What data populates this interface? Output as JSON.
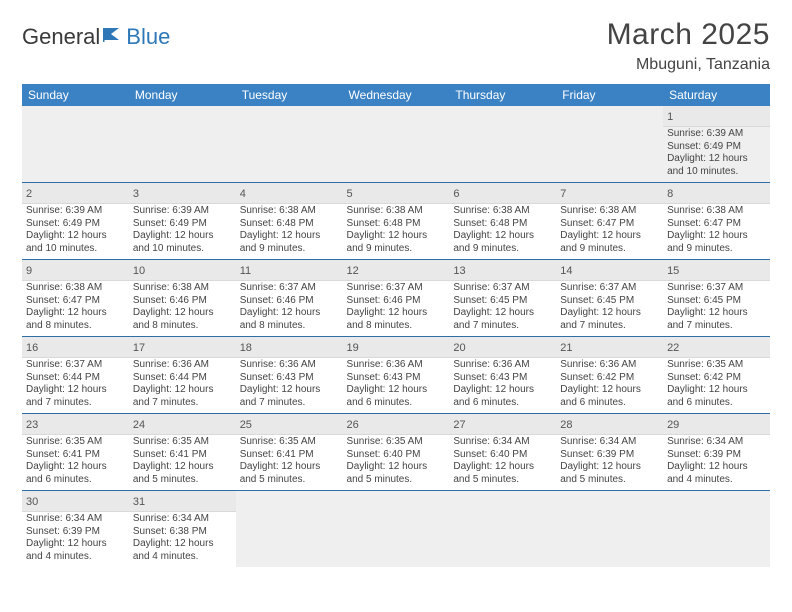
{
  "brand": {
    "part1": "General",
    "part2": "Blue"
  },
  "title": {
    "month": "March 2025",
    "location": "Mbuguni, Tanzania"
  },
  "colors": {
    "header_bg": "#3b82c4",
    "header_text": "#ffffff",
    "row_divider": "#2f6da8",
    "daynum_bg": "#e9e9e9",
    "empty_bg": "#efefef",
    "text": "#444444",
    "brand_blue": "#2f78b8"
  },
  "day_headers": [
    "Sunday",
    "Monday",
    "Tuesday",
    "Wednesday",
    "Thursday",
    "Friday",
    "Saturday"
  ],
  "weeks": [
    [
      null,
      null,
      null,
      null,
      null,
      null,
      {
        "n": "1",
        "sr": "Sunrise: 6:39 AM",
        "ss": "Sunset: 6:49 PM",
        "d1": "Daylight: 12 hours",
        "d2": "and 10 minutes."
      }
    ],
    [
      {
        "n": "2",
        "sr": "Sunrise: 6:39 AM",
        "ss": "Sunset: 6:49 PM",
        "d1": "Daylight: 12 hours",
        "d2": "and 10 minutes."
      },
      {
        "n": "3",
        "sr": "Sunrise: 6:39 AM",
        "ss": "Sunset: 6:49 PM",
        "d1": "Daylight: 12 hours",
        "d2": "and 10 minutes."
      },
      {
        "n": "4",
        "sr": "Sunrise: 6:38 AM",
        "ss": "Sunset: 6:48 PM",
        "d1": "Daylight: 12 hours",
        "d2": "and 9 minutes."
      },
      {
        "n": "5",
        "sr": "Sunrise: 6:38 AM",
        "ss": "Sunset: 6:48 PM",
        "d1": "Daylight: 12 hours",
        "d2": "and 9 minutes."
      },
      {
        "n": "6",
        "sr": "Sunrise: 6:38 AM",
        "ss": "Sunset: 6:48 PM",
        "d1": "Daylight: 12 hours",
        "d2": "and 9 minutes."
      },
      {
        "n": "7",
        "sr": "Sunrise: 6:38 AM",
        "ss": "Sunset: 6:47 PM",
        "d1": "Daylight: 12 hours",
        "d2": "and 9 minutes."
      },
      {
        "n": "8",
        "sr": "Sunrise: 6:38 AM",
        "ss": "Sunset: 6:47 PM",
        "d1": "Daylight: 12 hours",
        "d2": "and 9 minutes."
      }
    ],
    [
      {
        "n": "9",
        "sr": "Sunrise: 6:38 AM",
        "ss": "Sunset: 6:47 PM",
        "d1": "Daylight: 12 hours",
        "d2": "and 8 minutes."
      },
      {
        "n": "10",
        "sr": "Sunrise: 6:38 AM",
        "ss": "Sunset: 6:46 PM",
        "d1": "Daylight: 12 hours",
        "d2": "and 8 minutes."
      },
      {
        "n": "11",
        "sr": "Sunrise: 6:37 AM",
        "ss": "Sunset: 6:46 PM",
        "d1": "Daylight: 12 hours",
        "d2": "and 8 minutes."
      },
      {
        "n": "12",
        "sr": "Sunrise: 6:37 AM",
        "ss": "Sunset: 6:46 PM",
        "d1": "Daylight: 12 hours",
        "d2": "and 8 minutes."
      },
      {
        "n": "13",
        "sr": "Sunrise: 6:37 AM",
        "ss": "Sunset: 6:45 PM",
        "d1": "Daylight: 12 hours",
        "d2": "and 7 minutes."
      },
      {
        "n": "14",
        "sr": "Sunrise: 6:37 AM",
        "ss": "Sunset: 6:45 PM",
        "d1": "Daylight: 12 hours",
        "d2": "and 7 minutes."
      },
      {
        "n": "15",
        "sr": "Sunrise: 6:37 AM",
        "ss": "Sunset: 6:45 PM",
        "d1": "Daylight: 12 hours",
        "d2": "and 7 minutes."
      }
    ],
    [
      {
        "n": "16",
        "sr": "Sunrise: 6:37 AM",
        "ss": "Sunset: 6:44 PM",
        "d1": "Daylight: 12 hours",
        "d2": "and 7 minutes."
      },
      {
        "n": "17",
        "sr": "Sunrise: 6:36 AM",
        "ss": "Sunset: 6:44 PM",
        "d1": "Daylight: 12 hours",
        "d2": "and 7 minutes."
      },
      {
        "n": "18",
        "sr": "Sunrise: 6:36 AM",
        "ss": "Sunset: 6:43 PM",
        "d1": "Daylight: 12 hours",
        "d2": "and 7 minutes."
      },
      {
        "n": "19",
        "sr": "Sunrise: 6:36 AM",
        "ss": "Sunset: 6:43 PM",
        "d1": "Daylight: 12 hours",
        "d2": "and 6 minutes."
      },
      {
        "n": "20",
        "sr": "Sunrise: 6:36 AM",
        "ss": "Sunset: 6:43 PM",
        "d1": "Daylight: 12 hours",
        "d2": "and 6 minutes."
      },
      {
        "n": "21",
        "sr": "Sunrise: 6:36 AM",
        "ss": "Sunset: 6:42 PM",
        "d1": "Daylight: 12 hours",
        "d2": "and 6 minutes."
      },
      {
        "n": "22",
        "sr": "Sunrise: 6:35 AM",
        "ss": "Sunset: 6:42 PM",
        "d1": "Daylight: 12 hours",
        "d2": "and 6 minutes."
      }
    ],
    [
      {
        "n": "23",
        "sr": "Sunrise: 6:35 AM",
        "ss": "Sunset: 6:41 PM",
        "d1": "Daylight: 12 hours",
        "d2": "and 6 minutes."
      },
      {
        "n": "24",
        "sr": "Sunrise: 6:35 AM",
        "ss": "Sunset: 6:41 PM",
        "d1": "Daylight: 12 hours",
        "d2": "and 5 minutes."
      },
      {
        "n": "25",
        "sr": "Sunrise: 6:35 AM",
        "ss": "Sunset: 6:41 PM",
        "d1": "Daylight: 12 hours",
        "d2": "and 5 minutes."
      },
      {
        "n": "26",
        "sr": "Sunrise: 6:35 AM",
        "ss": "Sunset: 6:40 PM",
        "d1": "Daylight: 12 hours",
        "d2": "and 5 minutes."
      },
      {
        "n": "27",
        "sr": "Sunrise: 6:34 AM",
        "ss": "Sunset: 6:40 PM",
        "d1": "Daylight: 12 hours",
        "d2": "and 5 minutes."
      },
      {
        "n": "28",
        "sr": "Sunrise: 6:34 AM",
        "ss": "Sunset: 6:39 PM",
        "d1": "Daylight: 12 hours",
        "d2": "and 5 minutes."
      },
      {
        "n": "29",
        "sr": "Sunrise: 6:34 AM",
        "ss": "Sunset: 6:39 PM",
        "d1": "Daylight: 12 hours",
        "d2": "and 4 minutes."
      }
    ],
    [
      {
        "n": "30",
        "sr": "Sunrise: 6:34 AM",
        "ss": "Sunset: 6:39 PM",
        "d1": "Daylight: 12 hours",
        "d2": "and 4 minutes."
      },
      {
        "n": "31",
        "sr": "Sunrise: 6:34 AM",
        "ss": "Sunset: 6:38 PM",
        "d1": "Daylight: 12 hours",
        "d2": "and 4 minutes."
      },
      null,
      null,
      null,
      null,
      null
    ]
  ]
}
